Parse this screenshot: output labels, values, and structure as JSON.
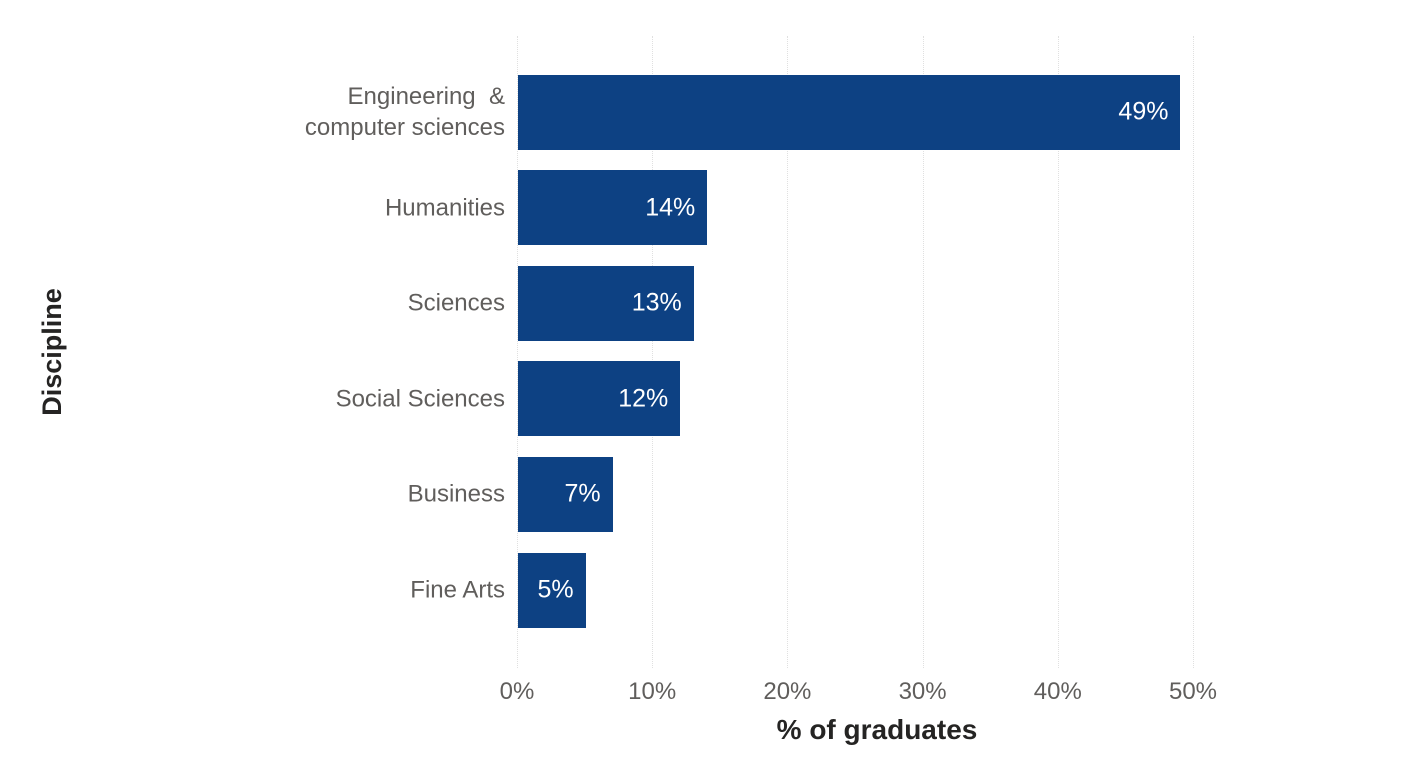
{
  "chart_data": {
    "type": "bar",
    "orientation": "horizontal",
    "categories": [
      "Engineering  &\ncomputer sciences",
      "Humanities",
      "Sciences",
      "Social Sciences",
      "Business",
      "Fine Arts"
    ],
    "values": [
      49,
      14,
      13,
      12,
      7,
      5
    ],
    "value_labels": [
      "49%",
      "14%",
      "13%",
      "12%",
      "7%",
      "5%"
    ],
    "title": "",
    "xlabel": "% of graduates",
    "ylabel": "Discipline",
    "x_ticks": [
      "0%",
      "10%",
      "20%",
      "30%",
      "40%",
      "50%"
    ],
    "x_tick_values": [
      0,
      10,
      20,
      30,
      40,
      50
    ],
    "xlim": [
      0,
      50
    ],
    "grid": "vertical-dotted",
    "legend": "none",
    "colors": {
      "bar": "#0d4183",
      "value_label": "#ffffff",
      "category_label": "#605e5c",
      "tick_label": "#605e5c",
      "axis_title": "#252423",
      "gridline": "#e0e0e0",
      "background": "#ffffff"
    }
  }
}
